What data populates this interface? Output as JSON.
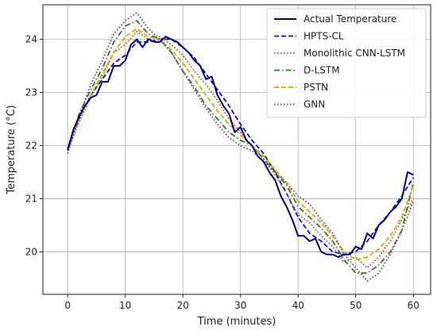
{
  "chart_data": {
    "type": "line",
    "title": "",
    "xlabel": "Time (minutes)",
    "ylabel": "Temperature (°C)",
    "xlim": [
      -4.3,
      63
    ],
    "ylim": [
      19.2,
      24.65
    ],
    "xticks": [
      0,
      10,
      20,
      30,
      40,
      50,
      60
    ],
    "yticks": [
      20,
      21,
      22,
      23,
      24
    ],
    "grid": true,
    "legend_position": "top-right",
    "series": [
      {
        "name": "Actual Temperature",
        "color": "#000080",
        "dash": "solid",
        "x": [
          0,
          1,
          2,
          3,
          4,
          5,
          6,
          7,
          8,
          9,
          10,
          11,
          12,
          13,
          14,
          15,
          16,
          17,
          18,
          19,
          20,
          21,
          22,
          23,
          24,
          25,
          26,
          27,
          28,
          29,
          30,
          31,
          32,
          33,
          34,
          35,
          36,
          37,
          38,
          39,
          40,
          41,
          42,
          43,
          44,
          45,
          46,
          47,
          48,
          49,
          50,
          51,
          52,
          53,
          54,
          55,
          56,
          57,
          58,
          59,
          60
        ],
        "y": [
          21.92,
          22.3,
          22.55,
          22.75,
          22.9,
          22.95,
          23.2,
          23.2,
          23.5,
          23.5,
          23.6,
          23.9,
          24.0,
          23.85,
          24.0,
          23.95,
          23.95,
          24.05,
          24.0,
          23.95,
          23.85,
          23.75,
          23.6,
          23.5,
          23.25,
          23.3,
          22.95,
          22.75,
          22.6,
          22.25,
          22.35,
          22.1,
          22.0,
          21.8,
          21.7,
          21.5,
          21.35,
          21.05,
          20.85,
          20.6,
          20.3,
          20.3,
          20.2,
          20.25,
          20.0,
          19.95,
          19.95,
          19.9,
          19.95,
          19.95,
          20.1,
          20.05,
          20.35,
          20.25,
          20.5,
          20.6,
          20.75,
          20.85,
          21.0,
          21.5,
          21.45
        ]
      },
      {
        "name": "HPTS-CL",
        "color": "#1010cc",
        "dash": "dashed",
        "x": [
          0,
          2,
          4,
          6,
          8,
          10,
          12,
          14,
          16,
          18,
          20,
          22,
          24,
          26,
          28,
          30,
          32,
          34,
          36,
          38,
          40,
          42,
          44,
          46,
          48,
          50,
          52,
          54,
          56,
          58,
          60
        ],
        "y": [
          21.95,
          22.5,
          22.95,
          23.25,
          23.55,
          23.7,
          23.95,
          23.95,
          24.0,
          24.0,
          23.85,
          23.65,
          23.35,
          23.05,
          22.75,
          22.4,
          22.1,
          21.85,
          21.5,
          21.1,
          20.65,
          20.35,
          20.2,
          20.0,
          19.95,
          20.0,
          20.2,
          20.5,
          20.75,
          21.05,
          21.4
        ]
      },
      {
        "name": "Monolithic CNN-LSTM",
        "color": "#a0522d",
        "dash": "dotted",
        "x": [
          0,
          2,
          4,
          6,
          8,
          10,
          12,
          14,
          16,
          18,
          20,
          22,
          24,
          26,
          28,
          30,
          32,
          34,
          36,
          38,
          40,
          42,
          44,
          46,
          48,
          50,
          52,
          54,
          56,
          58,
          60
        ],
        "y": [
          21.9,
          22.45,
          22.9,
          23.3,
          23.75,
          23.9,
          24.15,
          24.0,
          24.05,
          23.9,
          23.7,
          23.4,
          23.15,
          22.85,
          22.5,
          22.25,
          22.0,
          21.75,
          21.45,
          21.1,
          20.7,
          20.55,
          20.3,
          20.1,
          19.8,
          19.9,
          19.7,
          19.9,
          20.2,
          20.6,
          21.0
        ]
      },
      {
        "name": "D-LSTM",
        "color": "#2e7d1c",
        "dash": "dashdot",
        "x": [
          0,
          2,
          4,
          6,
          8,
          10,
          12,
          14,
          16,
          18,
          20,
          22,
          24,
          26,
          28,
          30,
          32,
          34,
          36,
          38,
          40,
          42,
          44,
          46,
          48,
          50,
          52,
          54,
          56,
          58,
          60
        ],
        "y": [
          21.9,
          22.6,
          23.05,
          23.45,
          23.95,
          24.25,
          24.35,
          24.1,
          24.0,
          23.75,
          23.4,
          23.1,
          22.75,
          22.5,
          22.25,
          22.1,
          22.0,
          21.75,
          21.5,
          21.25,
          20.85,
          20.65,
          20.45,
          20.2,
          19.85,
          19.6,
          19.6,
          19.75,
          20.0,
          20.4,
          21.3
        ]
      },
      {
        "name": "PSTN",
        "color": "#d4aa00",
        "dash": "dashed",
        "x": [
          0,
          2,
          4,
          6,
          8,
          10,
          12,
          14,
          16,
          18,
          20,
          22,
          24,
          26,
          28,
          30,
          32,
          34,
          36,
          38,
          40,
          42,
          44,
          46,
          48,
          50,
          52,
          54,
          56,
          58,
          60
        ],
        "y": [
          21.92,
          22.5,
          22.95,
          23.35,
          23.75,
          24.05,
          24.2,
          24.05,
          24.0,
          23.8,
          23.55,
          23.25,
          22.95,
          22.65,
          22.4,
          22.2,
          22.0,
          21.8,
          21.55,
          21.3,
          20.95,
          20.75,
          20.55,
          20.3,
          20.0,
          19.85,
          19.9,
          20.05,
          20.3,
          20.65,
          21.25
        ]
      },
      {
        "name": "GNN",
        "color": "#8b2a8b",
        "dash": "dotted",
        "x": [
          0,
          2,
          4,
          6,
          8,
          10,
          12,
          14,
          16,
          18,
          20,
          22,
          24,
          26,
          28,
          30,
          32,
          34,
          36,
          38,
          40,
          42,
          44,
          46,
          48,
          50,
          52,
          54,
          56,
          58,
          60
        ],
        "y": [
          21.85,
          22.55,
          23.15,
          23.6,
          24.1,
          24.35,
          24.5,
          24.2,
          24.0,
          23.75,
          23.4,
          23.05,
          22.7,
          22.4,
          22.15,
          22.0,
          21.9,
          21.7,
          21.5,
          21.3,
          21.05,
          20.9,
          20.6,
          20.35,
          19.95,
          19.7,
          19.45,
          19.6,
          19.95,
          20.4,
          20.95
        ]
      }
    ]
  }
}
